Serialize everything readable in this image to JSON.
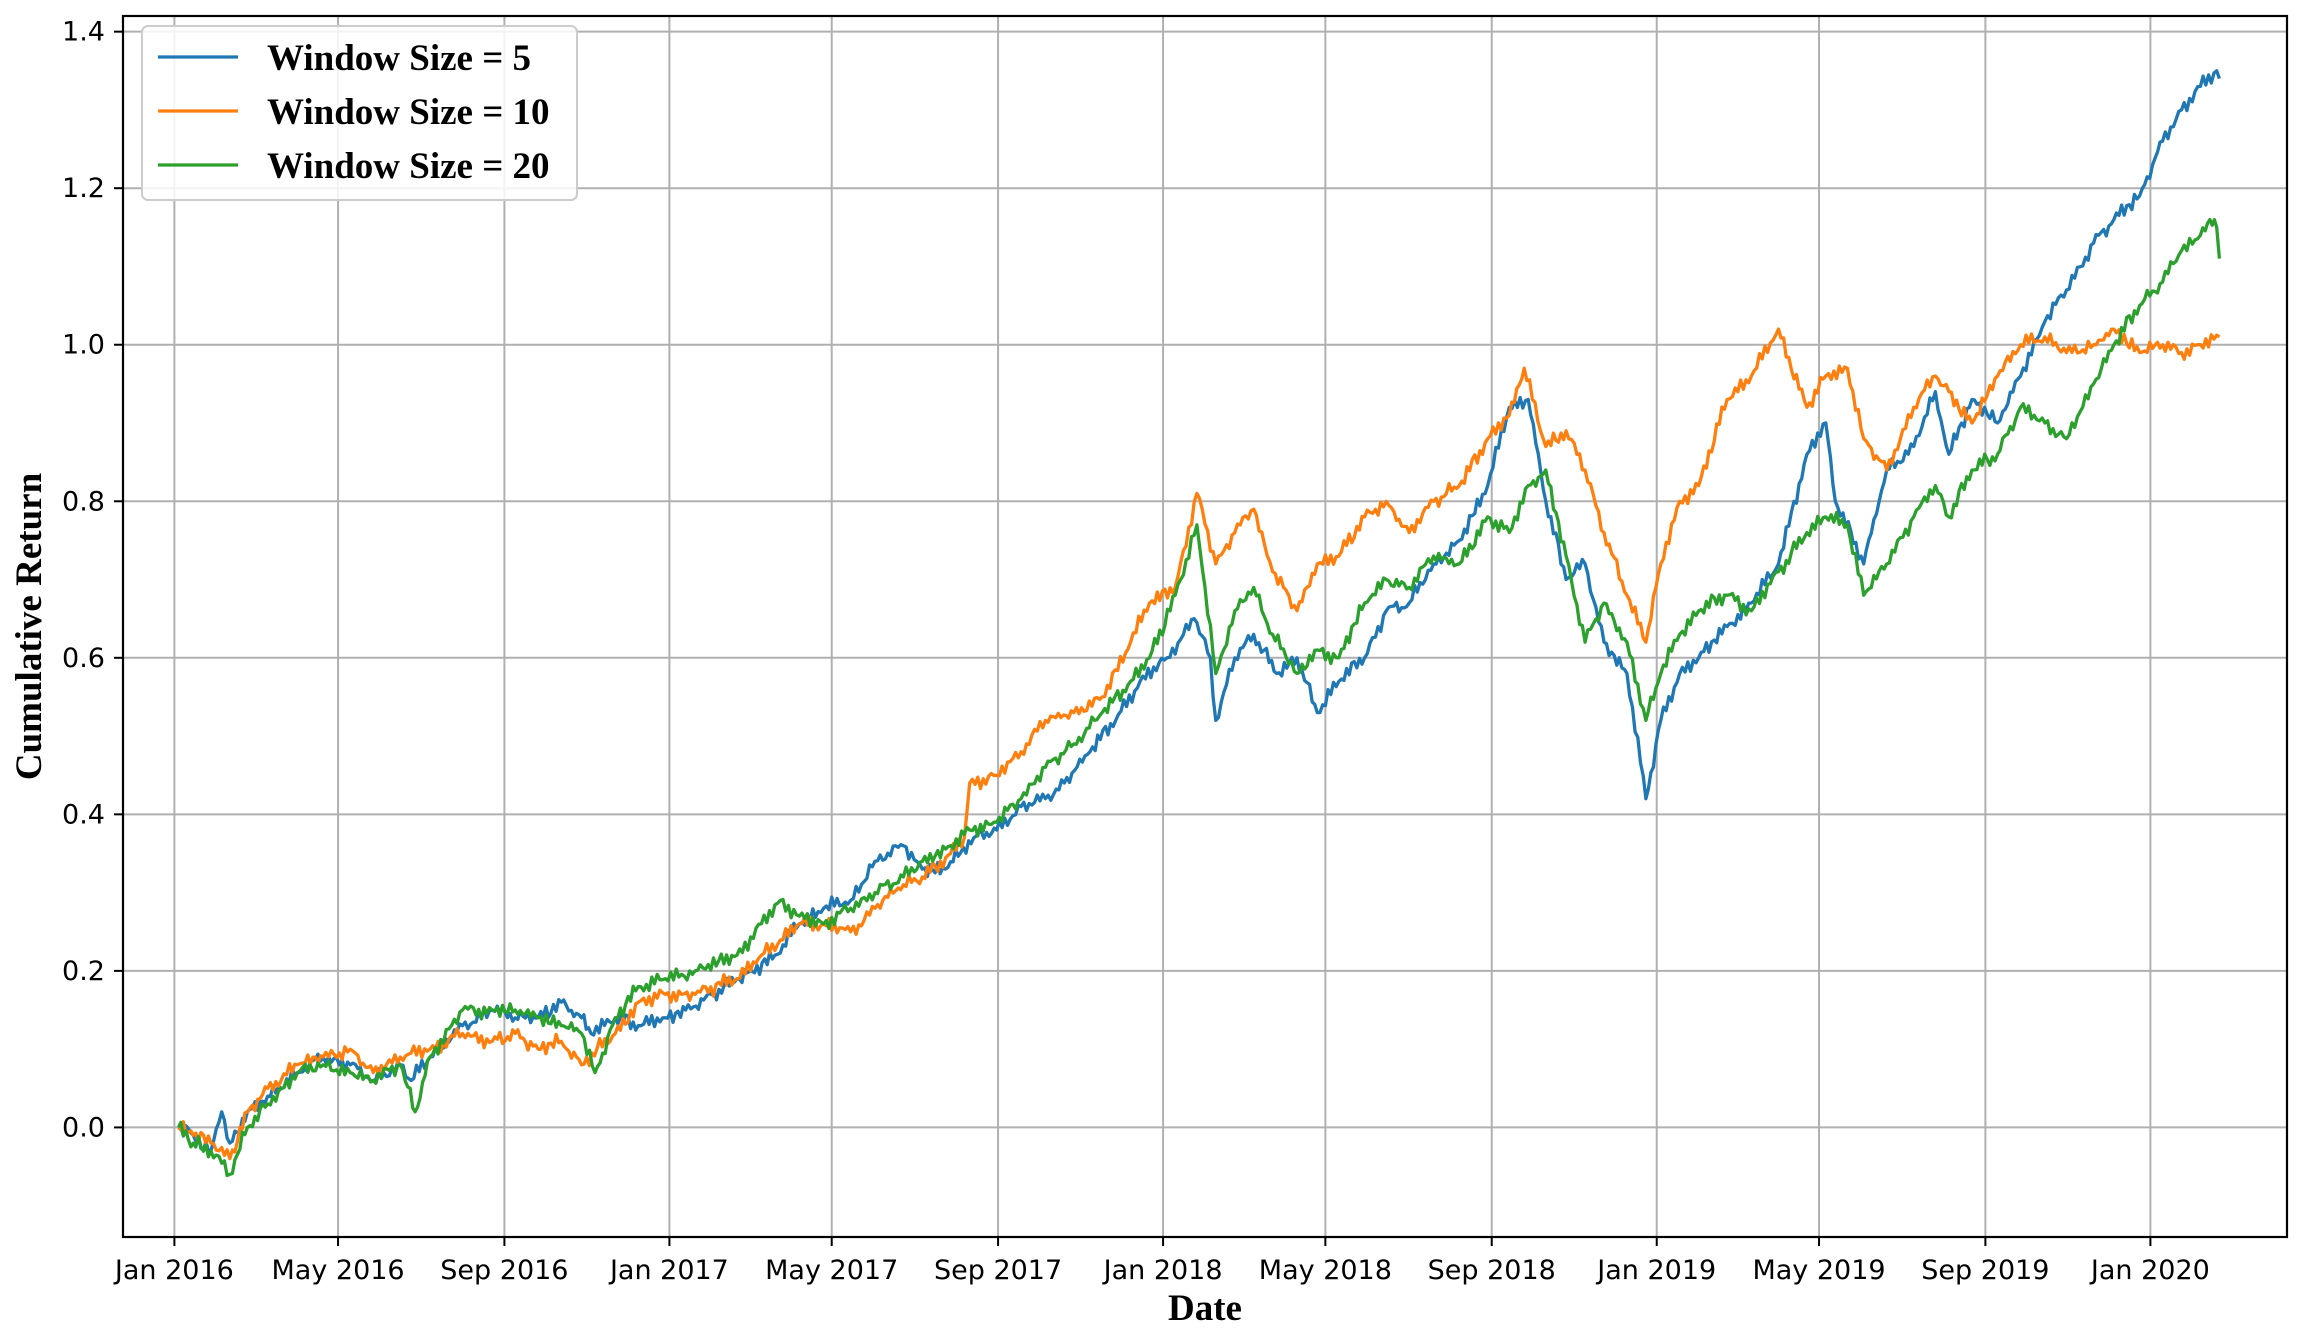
{
  "chart_data": {
    "type": "line",
    "title": "",
    "xlabel": "Date",
    "ylabel": "Cumulative Return",
    "x_tick_labels": [
      "Jan 2016",
      "May 2016",
      "Sep 2016",
      "Jan 2017",
      "May 2017",
      "Sep 2017",
      "Jan 2018",
      "May 2018",
      "Sep 2018",
      "Jan 2019",
      "May 2019",
      "Sep 2019",
      "Jan 2020"
    ],
    "y_tick_labels": [
      "0.0",
      "0.2",
      "0.4",
      "0.6",
      "0.8",
      "1.0",
      "1.2",
      "1.4"
    ],
    "xlim": [
      "2015-11-24",
      "2020-04-11"
    ],
    "ylim": [
      -0.14,
      1.42
    ],
    "grid": true,
    "legend_position": "top-left",
    "series": [
      {
        "name": "Window Size = 5",
        "color": "#1f77b4",
        "points": [
          [
            "2016-01-04",
            0.0
          ],
          [
            "2016-01-15",
            -0.01
          ],
          [
            "2016-01-28",
            -0.03
          ],
          [
            "2016-02-05",
            0.02
          ],
          [
            "2016-02-11",
            -0.02
          ],
          [
            "2016-02-24",
            0.02
          ],
          [
            "2016-03-10",
            0.04
          ],
          [
            "2016-04-01",
            0.07
          ],
          [
            "2016-04-20",
            0.09
          ],
          [
            "2016-05-10",
            0.08
          ],
          [
            "2016-05-27",
            0.06
          ],
          [
            "2016-06-16",
            0.08
          ],
          [
            "2016-06-24",
            0.06
          ],
          [
            "2016-07-08",
            0.09
          ],
          [
            "2016-08-01",
            0.13
          ],
          [
            "2016-08-23",
            0.15
          ],
          [
            "2016-09-09",
            0.14
          ],
          [
            "2016-09-26",
            0.14
          ],
          [
            "2016-10-13",
            0.16
          ],
          [
            "2016-10-28",
            0.14
          ],
          [
            "2016-11-04",
            0.12
          ],
          [
            "2016-11-22",
            0.14
          ],
          [
            "2016-12-09",
            0.13
          ],
          [
            "2016-12-29",
            0.14
          ],
          [
            "2017-01-13",
            0.15
          ],
          [
            "2017-02-01",
            0.17
          ],
          [
            "2017-02-20",
            0.19
          ],
          [
            "2017-03-03",
            0.2
          ],
          [
            "2017-03-20",
            0.22
          ],
          [
            "2017-04-07",
            0.26
          ],
          [
            "2017-04-25",
            0.28
          ],
          [
            "2017-05-15",
            0.29
          ],
          [
            "2017-06-02",
            0.34
          ],
          [
            "2017-06-23",
            0.36
          ],
          [
            "2017-07-07",
            0.33
          ],
          [
            "2017-07-24",
            0.33
          ],
          [
            "2017-08-14",
            0.37
          ],
          [
            "2017-08-31",
            0.38
          ],
          [
            "2017-09-18",
            0.41
          ],
          [
            "2017-10-06",
            0.42
          ],
          [
            "2017-10-20",
            0.44
          ],
          [
            "2017-11-08",
            0.48
          ],
          [
            "2017-11-27",
            0.52
          ],
          [
            "2017-12-15",
            0.57
          ],
          [
            "2018-01-04",
            0.6
          ],
          [
            "2018-01-24",
            0.65
          ],
          [
            "2018-02-05",
            0.6
          ],
          [
            "2018-02-09",
            0.52
          ],
          [
            "2018-02-23",
            0.6
          ],
          [
            "2018-03-09",
            0.63
          ],
          [
            "2018-03-26",
            0.58
          ],
          [
            "2018-04-10",
            0.6
          ],
          [
            "2018-04-25",
            0.53
          ],
          [
            "2018-05-11",
            0.57
          ],
          [
            "2018-05-30",
            0.6
          ],
          [
            "2018-06-15",
            0.66
          ],
          [
            "2018-07-02",
            0.67
          ],
          [
            "2018-07-20",
            0.72
          ],
          [
            "2018-08-08",
            0.75
          ],
          [
            "2018-08-29",
            0.82
          ],
          [
            "2018-09-14",
            0.92
          ],
          [
            "2018-09-28",
            0.93
          ],
          [
            "2018-10-11",
            0.8
          ],
          [
            "2018-10-26",
            0.7
          ],
          [
            "2018-11-09",
            0.72
          ],
          [
            "2018-11-23",
            0.62
          ],
          [
            "2018-12-10",
            0.58
          ],
          [
            "2018-12-24",
            0.42
          ],
          [
            "2019-01-04",
            0.52
          ],
          [
            "2019-01-18",
            0.58
          ],
          [
            "2019-02-01",
            0.6
          ],
          [
            "2019-02-22",
            0.64
          ],
          [
            "2019-03-12",
            0.67
          ],
          [
            "2019-04-01",
            0.72
          ],
          [
            "2019-04-22",
            0.86
          ],
          [
            "2019-05-06",
            0.9
          ],
          [
            "2019-05-13",
            0.8
          ],
          [
            "2019-06-03",
            0.72
          ],
          [
            "2019-06-20",
            0.84
          ],
          [
            "2019-07-10",
            0.87
          ],
          [
            "2019-07-26",
            0.94
          ],
          [
            "2019-08-05",
            0.86
          ],
          [
            "2019-08-22",
            0.93
          ],
          [
            "2019-09-10",
            0.9
          ],
          [
            "2019-09-27",
            0.96
          ],
          [
            "2019-10-15",
            1.03
          ],
          [
            "2019-10-31",
            1.07
          ],
          [
            "2019-11-20",
            1.13
          ],
          [
            "2019-12-05",
            1.16
          ],
          [
            "2019-12-24",
            1.19
          ],
          [
            "2020-01-10",
            1.26
          ],
          [
            "2020-01-24",
            1.3
          ],
          [
            "2020-02-07",
            1.33
          ],
          [
            "2020-02-19",
            1.35
          ],
          [
            "2020-02-21",
            1.34
          ]
        ]
      },
      {
        "name": "Window Size = 10",
        "color": "#ff7f0e",
        "points": [
          [
            "2016-01-04",
            0.0
          ],
          [
            "2016-01-15",
            -0.01
          ],
          [
            "2016-01-28",
            -0.02
          ],
          [
            "2016-02-11",
            -0.04
          ],
          [
            "2016-02-24",
            0.02
          ],
          [
            "2016-03-10",
            0.05
          ],
          [
            "2016-04-01",
            0.08
          ],
          [
            "2016-04-20",
            0.09
          ],
          [
            "2016-05-10",
            0.1
          ],
          [
            "2016-05-27",
            0.07
          ],
          [
            "2016-06-16",
            0.09
          ],
          [
            "2016-07-08",
            0.1
          ],
          [
            "2016-08-01",
            0.12
          ],
          [
            "2016-08-23",
            0.11
          ],
          [
            "2016-09-09",
            0.12
          ],
          [
            "2016-09-26",
            0.1
          ],
          [
            "2016-10-13",
            0.11
          ],
          [
            "2016-10-28",
            0.08
          ],
          [
            "2016-11-22",
            0.12
          ],
          [
            "2016-12-09",
            0.16
          ],
          [
            "2016-12-29",
            0.17
          ],
          [
            "2017-01-20",
            0.17
          ],
          [
            "2017-02-20",
            0.19
          ],
          [
            "2017-03-10",
            0.22
          ],
          [
            "2017-04-07",
            0.26
          ],
          [
            "2017-04-25",
            0.26
          ],
          [
            "2017-05-15",
            0.25
          ],
          [
            "2017-06-02",
            0.28
          ],
          [
            "2017-06-23",
            0.31
          ],
          [
            "2017-07-07",
            0.32
          ],
          [
            "2017-07-28",
            0.35
          ],
          [
            "2017-08-07",
            0.37
          ],
          [
            "2017-08-11",
            0.44
          ],
          [
            "2017-08-31",
            0.45
          ],
          [
            "2017-09-18",
            0.48
          ],
          [
            "2017-10-06",
            0.52
          ],
          [
            "2017-10-27",
            0.53
          ],
          [
            "2017-11-17",
            0.55
          ],
          [
            "2017-12-08",
            0.62
          ],
          [
            "2017-12-22",
            0.67
          ],
          [
            "2018-01-10",
            0.69
          ],
          [
            "2018-01-26",
            0.81
          ],
          [
            "2018-02-09",
            0.72
          ],
          [
            "2018-02-23",
            0.76
          ],
          [
            "2018-03-09",
            0.79
          ],
          [
            "2018-03-23",
            0.71
          ],
          [
            "2018-04-10",
            0.66
          ],
          [
            "2018-04-25",
            0.72
          ],
          [
            "2018-05-11",
            0.73
          ],
          [
            "2018-05-30",
            0.78
          ],
          [
            "2018-06-15",
            0.8
          ],
          [
            "2018-07-02",
            0.76
          ],
          [
            "2018-07-20",
            0.8
          ],
          [
            "2018-08-08",
            0.82
          ],
          [
            "2018-08-29",
            0.88
          ],
          [
            "2018-09-14",
            0.91
          ],
          [
            "2018-09-25",
            0.97
          ],
          [
            "2018-10-11",
            0.87
          ],
          [
            "2018-10-26",
            0.89
          ],
          [
            "2018-11-09",
            0.84
          ],
          [
            "2018-11-23",
            0.76
          ],
          [
            "2018-12-10",
            0.68
          ],
          [
            "2018-12-24",
            0.62
          ],
          [
            "2019-01-04",
            0.72
          ],
          [
            "2019-01-18",
            0.8
          ],
          [
            "2019-02-01",
            0.82
          ],
          [
            "2019-02-22",
            0.93
          ],
          [
            "2019-03-12",
            0.96
          ],
          [
            "2019-04-01",
            1.02
          ],
          [
            "2019-04-22",
            0.92
          ],
          [
            "2019-05-06",
            0.96
          ],
          [
            "2019-05-22",
            0.97
          ],
          [
            "2019-06-03",
            0.88
          ],
          [
            "2019-06-20",
            0.84
          ],
          [
            "2019-07-10",
            0.92
          ],
          [
            "2019-07-26",
            0.96
          ],
          [
            "2019-08-05",
            0.94
          ],
          [
            "2019-08-22",
            0.9
          ],
          [
            "2019-09-10",
            0.96
          ],
          [
            "2019-09-27",
            1.0
          ],
          [
            "2019-10-15",
            1.01
          ],
          [
            "2019-10-31",
            0.99
          ],
          [
            "2019-11-20",
            1.0
          ],
          [
            "2019-12-05",
            1.02
          ],
          [
            "2019-12-24",
            0.99
          ],
          [
            "2020-01-10",
            1.0
          ],
          [
            "2020-01-24",
            0.99
          ],
          [
            "2020-02-07",
            1.0
          ],
          [
            "2020-02-21",
            1.01
          ]
        ]
      },
      {
        "name": "Window Size = 20",
        "color": "#2ca02c",
        "points": [
          [
            "2016-01-04",
            0.0
          ],
          [
            "2016-01-15",
            -0.02
          ],
          [
            "2016-01-28",
            -0.03
          ],
          [
            "2016-02-11",
            -0.06
          ],
          [
            "2016-02-24",
            0.0
          ],
          [
            "2016-03-10",
            0.03
          ],
          [
            "2016-04-01",
            0.07
          ],
          [
            "2016-04-20",
            0.08
          ],
          [
            "2016-05-10",
            0.07
          ],
          [
            "2016-05-27",
            0.06
          ],
          [
            "2016-06-16",
            0.08
          ],
          [
            "2016-06-27",
            0.02
          ],
          [
            "2016-07-08",
            0.09
          ],
          [
            "2016-08-01",
            0.15
          ],
          [
            "2016-08-23",
            0.15
          ],
          [
            "2016-09-09",
            0.15
          ],
          [
            "2016-09-26",
            0.14
          ],
          [
            "2016-10-13",
            0.13
          ],
          [
            "2016-10-28",
            0.12
          ],
          [
            "2016-11-07",
            0.07
          ],
          [
            "2016-11-22",
            0.14
          ],
          [
            "2016-12-09",
            0.18
          ],
          [
            "2016-12-29",
            0.19
          ],
          [
            "2017-01-20",
            0.2
          ],
          [
            "2017-02-20",
            0.22
          ],
          [
            "2017-03-10",
            0.26
          ],
          [
            "2017-03-24",
            0.29
          ],
          [
            "2017-04-07",
            0.27
          ],
          [
            "2017-04-25",
            0.26
          ],
          [
            "2017-05-15",
            0.28
          ],
          [
            "2017-06-02",
            0.3
          ],
          [
            "2017-06-23",
            0.32
          ],
          [
            "2017-07-07",
            0.34
          ],
          [
            "2017-07-28",
            0.36
          ],
          [
            "2017-08-11",
            0.38
          ],
          [
            "2017-08-31",
            0.39
          ],
          [
            "2017-09-18",
            0.42
          ],
          [
            "2017-10-06",
            0.46
          ],
          [
            "2017-10-27",
            0.49
          ],
          [
            "2017-11-17",
            0.53
          ],
          [
            "2017-12-08",
            0.57
          ],
          [
            "2017-12-22",
            0.6
          ],
          [
            "2018-01-10",
            0.68
          ],
          [
            "2018-01-26",
            0.77
          ],
          [
            "2018-02-09",
            0.58
          ],
          [
            "2018-02-23",
            0.66
          ],
          [
            "2018-03-09",
            0.69
          ],
          [
            "2018-03-23",
            0.63
          ],
          [
            "2018-04-10",
            0.58
          ],
          [
            "2018-04-25",
            0.61
          ],
          [
            "2018-05-11",
            0.6
          ],
          [
            "2018-05-30",
            0.67
          ],
          [
            "2018-06-15",
            0.7
          ],
          [
            "2018-07-02",
            0.69
          ],
          [
            "2018-07-20",
            0.73
          ],
          [
            "2018-08-08",
            0.72
          ],
          [
            "2018-08-29",
            0.78
          ],
          [
            "2018-09-14",
            0.76
          ],
          [
            "2018-09-28",
            0.82
          ],
          [
            "2018-10-11",
            0.84
          ],
          [
            "2018-10-26",
            0.73
          ],
          [
            "2018-11-09",
            0.62
          ],
          [
            "2018-11-23",
            0.67
          ],
          [
            "2018-12-10",
            0.62
          ],
          [
            "2018-12-24",
            0.52
          ],
          [
            "2019-01-04",
            0.58
          ],
          [
            "2019-01-18",
            0.63
          ],
          [
            "2019-02-01",
            0.66
          ],
          [
            "2019-02-22",
            0.68
          ],
          [
            "2019-03-12",
            0.66
          ],
          [
            "2019-04-01",
            0.71
          ],
          [
            "2019-04-22",
            0.76
          ],
          [
            "2019-05-06",
            0.78
          ],
          [
            "2019-05-22",
            0.77
          ],
          [
            "2019-06-03",
            0.68
          ],
          [
            "2019-06-20",
            0.72
          ],
          [
            "2019-07-10",
            0.78
          ],
          [
            "2019-07-26",
            0.82
          ],
          [
            "2019-08-05",
            0.78
          ],
          [
            "2019-08-22",
            0.84
          ],
          [
            "2019-09-10",
            0.86
          ],
          [
            "2019-09-27",
            0.92
          ],
          [
            "2019-10-15",
            0.9
          ],
          [
            "2019-10-31",
            0.88
          ],
          [
            "2019-11-20",
            0.95
          ],
          [
            "2019-12-05",
            1.0
          ],
          [
            "2019-12-24",
            1.05
          ],
          [
            "2020-01-10",
            1.08
          ],
          [
            "2020-01-24",
            1.12
          ],
          [
            "2020-02-07",
            1.14
          ],
          [
            "2020-02-14",
            1.16
          ],
          [
            "2020-02-19",
            1.15
          ],
          [
            "2020-02-21",
            1.11
          ]
        ]
      }
    ]
  }
}
